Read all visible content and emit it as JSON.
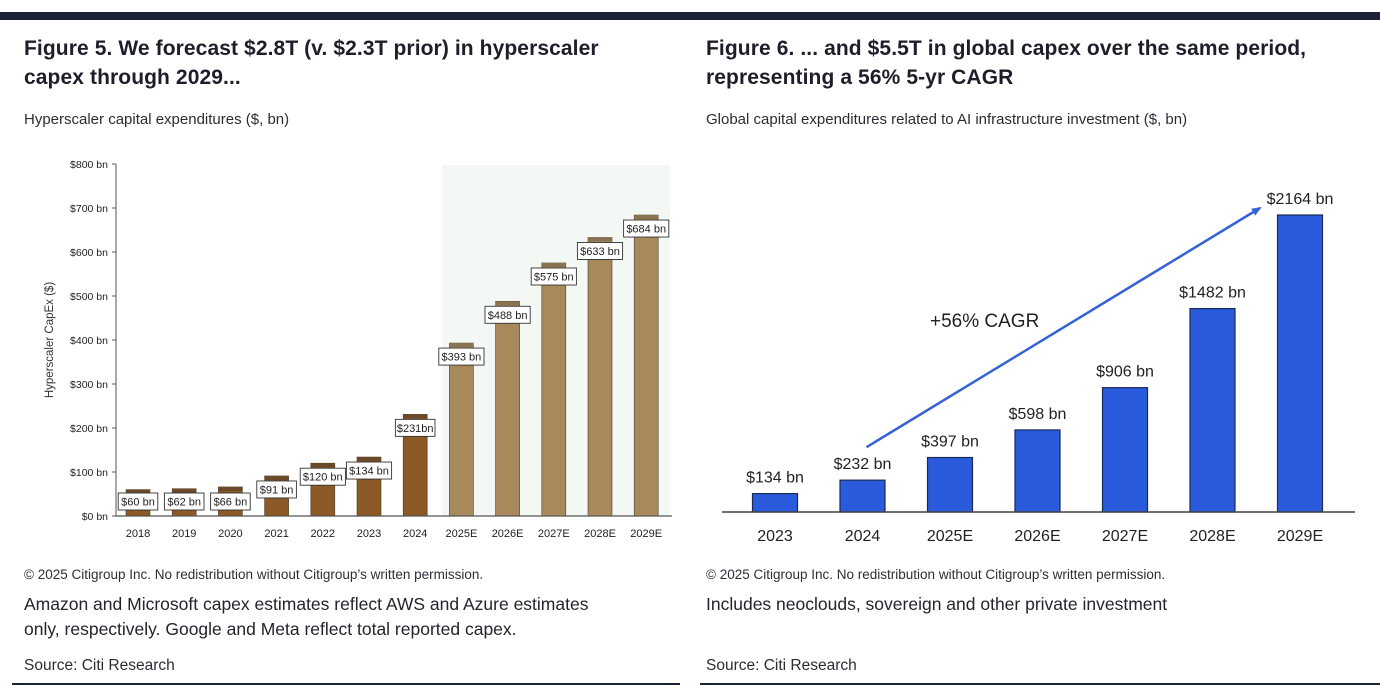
{
  "figures": [
    {
      "title_line1": "Figure 5. We forecast $2.8T (v. $2.3T prior) in hyperscaler",
      "title_line2": "capex through 2029...",
      "subtitle": "Hyperscaler capital expenditures ($, bn)",
      "copyright": "© 2025 Citigroup Inc. No redistribution without Citigroup’s written permission.",
      "note_line1": "Amazon and Microsoft capex estimates reflect AWS and Azure estimates",
      "note_line2": "only, respectively. Google and Meta reflect total reported capex.",
      "source": "Source: Citi Research"
    },
    {
      "title_line1": "Figure 6. ... and $5.5T in global capex over the same period,",
      "title_line2": "representing a 56% 5-yr CAGR",
      "subtitle": "Global capital expenditures related to AI infrastructure investment ($, bn)",
      "copyright": "© 2025 Citigroup Inc. No redistribution without Citigroup’s written permission.",
      "note_line1": "Includes neoclouds, sovereign and other private investment",
      "note_line2": "",
      "source": "Source: Citi Research"
    }
  ],
  "colors": {
    "historical": "#8c5a26",
    "historical_cap": "#6b4a2a",
    "forecast": "#a8895c",
    "forecast_cap": "#8a7350",
    "forecast_shade": "#f4f8f4",
    "blue_bar": "#2a5bdc",
    "blue_border": "#1a2a55",
    "arrow": "#3563d6",
    "axis": "#555555"
  },
  "chart_data": [
    {
      "type": "bar",
      "title": "Figure 5. We forecast $2.8T (v. $2.3T prior) in hyperscaler capex through 2029...",
      "subtitle": "Hyperscaler capital expenditures ($, bn)",
      "xlabel": "",
      "ylabel": "Hyperscaler CapEx ($)",
      "ylim": [
        0,
        800
      ],
      "yticks": [
        0,
        100,
        200,
        300,
        400,
        500,
        600,
        700,
        800
      ],
      "ytick_labels": [
        "$0 bn",
        "$100 bn",
        "$200 bn",
        "$300 bn",
        "$400 bn",
        "$500 bn",
        "$600 bn",
        "$700 bn",
        "$800 bn"
      ],
      "categories": [
        "2018",
        "2019",
        "2020",
        "2021",
        "2022",
        "2023",
        "2024",
        "2025E",
        "2026E",
        "2027E",
        "2028E",
        "2029E"
      ],
      "values": [
        60,
        62,
        66,
        91,
        120,
        134,
        231,
        393,
        488,
        575,
        633,
        684
      ],
      "data_labels": [
        "$60 bn",
        "$62 bn",
        "$66 bn",
        "$91 bn",
        "$120 bn",
        "$134 bn",
        "$231bn",
        "$393 bn",
        "$488 bn",
        "$575 bn",
        "$633 bn",
        "$684 bn"
      ],
      "forecast_start_index": 7,
      "forecast_region_shaded": true,
      "grid": false,
      "legend": "none"
    },
    {
      "type": "bar",
      "title": "Figure 6. ... and $5.5T in global capex over the same period, representing a 56% 5-yr CAGR",
      "subtitle": "Global capital expenditures related to AI infrastructure investment ($, bn)",
      "xlabel": "",
      "ylabel": "",
      "ylim": [
        0,
        2164
      ],
      "categories": [
        "2023",
        "2024",
        "2025E",
        "2026E",
        "2027E",
        "2028E",
        "2029E"
      ],
      "values": [
        134,
        232,
        397,
        598,
        906,
        1482,
        2164
      ],
      "data_labels": [
        "$134 bn",
        "$232 bn",
        "$397 bn",
        "$598 bn",
        "$906 bn",
        "$1482 bn",
        "$2164 bn"
      ],
      "annotation": "+56% CAGR",
      "annotation_arrow": {
        "from_category": "2024",
        "to_category": "2029E"
      },
      "grid": false,
      "legend": "none"
    }
  ]
}
